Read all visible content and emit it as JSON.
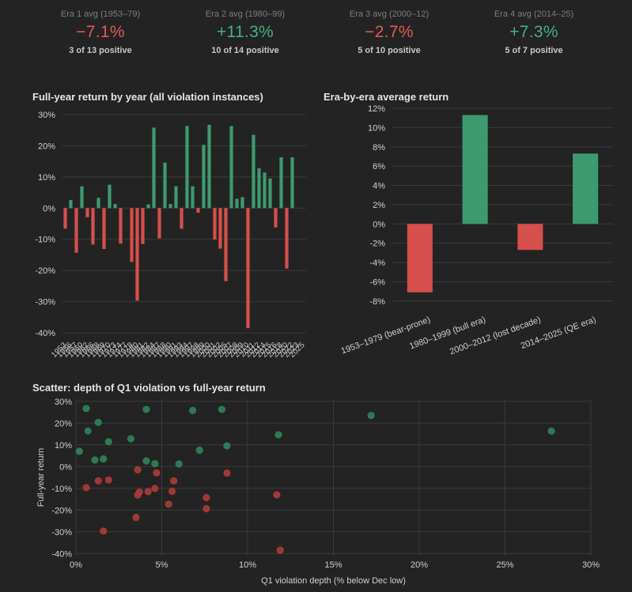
{
  "colors": {
    "positive": "#3d9a6f",
    "negative": "#d64f4b",
    "pos_text": "#45b07f",
    "neg_text": "#e05a55",
    "grid": "#3a3a3a",
    "axis_text": "#d0d0d0"
  },
  "stats": [
    {
      "label": "Era 1 avg (1953–79)",
      "value": "−7.1%",
      "sub": "3 of 13 positive",
      "sign": "neg"
    },
    {
      "label": "Era 2 avg (1980–99)",
      "value": "+11.3%",
      "sub": "10 of 14 positive",
      "sign": "pos"
    },
    {
      "label": "Era 3 avg (2000–12)",
      "value": "−2.7%",
      "sub": "5 of 10 positive",
      "sign": "neg"
    },
    {
      "label": "Era 4 avg (2014–25)",
      "value": "+7.3%",
      "sub": "5 of 7 positive",
      "sign": "pos"
    }
  ],
  "chart_data": [
    {
      "type": "bar",
      "title": "Full-year return by year (all violation instances)",
      "ylim": [
        -42,
        32
      ],
      "yticks": [
        30,
        20,
        10,
        0,
        -10,
        -20,
        -30,
        -40
      ],
      "ytick_labels": [
        "30%",
        "20%",
        "10%",
        "0%",
        "-10%",
        "-20%",
        "-30%",
        "-40%"
      ],
      "categories": [
        "1953",
        "1956",
        "1957",
        "1960",
        "1962",
        "1966",
        "1968",
        "1969",
        "1970",
        "1973",
        "1974",
        "1977",
        "1978",
        "1980",
        "1981",
        "1982",
        "1984",
        "1987",
        "1988",
        "1990",
        "1991",
        "1993",
        "1994",
        "1997",
        "1998",
        "1999",
        "2000",
        "2001",
        "2002",
        "2005",
        "2007",
        "2008",
        "2009",
        "2010",
        "2011",
        "2012",
        "2014",
        "2015",
        "2016",
        "2018",
        "2020",
        "2022",
        "2023",
        "2025"
      ],
      "values": [
        -6.6,
        2.6,
        -14.3,
        7.0,
        -2.9,
        -11.7,
        3.3,
        -13.1,
        7.5,
        1.3,
        -11.4,
        0,
        -17.3,
        -29.7,
        -11.5,
        1.2,
        25.8,
        -9.7,
        14.6,
        1.3,
        7.0,
        -6.6,
        26.3,
        7.0,
        -1.5,
        20.3,
        26.7,
        -10.1,
        -13.0,
        -23.4,
        26.3,
        3.0,
        3.5,
        -38.5,
        23.5,
        12.8,
        11.4,
        9.5,
        -6.2,
        16.3,
        -19.4,
        16.3,
        0,
        0
      ]
    },
    {
      "type": "bar",
      "title": "Era-by-era average return",
      "ylim": [
        -9,
        12
      ],
      "yticks": [
        12,
        10,
        8,
        6,
        4,
        2,
        0,
        -2,
        -4,
        -6,
        -8
      ],
      "ytick_labels": [
        "12%",
        "10%",
        "8%",
        "6%",
        "4%",
        "2%",
        "0%",
        "-2%",
        "-4%",
        "-6%",
        "-8%"
      ],
      "categories": [
        "1953–1979 (bear-prone)",
        "1980–1999 (bull era)",
        "2000–2012 (lost decade)",
        "2014–2025 (QE era)"
      ],
      "values": [
        -7.1,
        11.3,
        -2.7,
        7.3
      ]
    },
    {
      "type": "scatter",
      "title": "Scatter: depth of Q1 violation vs full-year return",
      "xlabel": "Q1 violation depth (% below Dec low)",
      "ylabel": "Full-year return",
      "xlim": [
        0,
        30
      ],
      "ylim": [
        -41,
        31
      ],
      "xticks": [
        0,
        5,
        10,
        15,
        20,
        25,
        30
      ],
      "xtick_labels": [
        "0%",
        "5%",
        "10%",
        "15%",
        "20%",
        "25%",
        "30%"
      ],
      "yticks": [
        30,
        20,
        10,
        0,
        -10,
        -20,
        -30,
        -40
      ],
      "ytick_labels": [
        "30%",
        "20%",
        "10%",
        "0%",
        "-10%",
        "-20%",
        "-30%",
        "-40%"
      ],
      "points": [
        {
          "x": 0.6,
          "y": 26.7
        },
        {
          "x": 1.3,
          "y": 20.3
        },
        {
          "x": 0.7,
          "y": 16.3
        },
        {
          "x": 1.9,
          "y": 11.4
        },
        {
          "x": 0.2,
          "y": 7.0
        },
        {
          "x": 1.1,
          "y": 3.0
        },
        {
          "x": 1.6,
          "y": 3.5
        },
        {
          "x": 3.2,
          "y": 12.8
        },
        {
          "x": 4.1,
          "y": 26.3
        },
        {
          "x": 4.1,
          "y": 2.6
        },
        {
          "x": 4.6,
          "y": 1.3
        },
        {
          "x": 6.0,
          "y": 1.2
        },
        {
          "x": 6.8,
          "y": 25.8
        },
        {
          "x": 7.2,
          "y": 7.5
        },
        {
          "x": 8.5,
          "y": 26.3
        },
        {
          "x": 8.8,
          "y": 9.5
        },
        {
          "x": 11.8,
          "y": 14.6
        },
        {
          "x": 17.2,
          "y": 23.5
        },
        {
          "x": 27.7,
          "y": 16.3
        },
        {
          "x": 0.6,
          "y": -9.7
        },
        {
          "x": 1.3,
          "y": -6.6
        },
        {
          "x": 1.9,
          "y": -6.2
        },
        {
          "x": 1.6,
          "y": -29.7
        },
        {
          "x": 3.6,
          "y": -1.5
        },
        {
          "x": 3.6,
          "y": -13.1
        },
        {
          "x": 3.7,
          "y": -11.7
        },
        {
          "x": 3.5,
          "y": -23.4
        },
        {
          "x": 4.2,
          "y": -11.5
        },
        {
          "x": 4.6,
          "y": -10.1
        },
        {
          "x": 4.7,
          "y": -2.9
        },
        {
          "x": 5.7,
          "y": -6.6
        },
        {
          "x": 5.6,
          "y": -11.4
        },
        {
          "x": 5.4,
          "y": -17.3
        },
        {
          "x": 7.6,
          "y": -14.3
        },
        {
          "x": 7.6,
          "y": -19.4
        },
        {
          "x": 8.8,
          "y": -3.0
        },
        {
          "x": 11.7,
          "y": -13.0
        },
        {
          "x": 11.9,
          "y": -38.5
        }
      ]
    }
  ]
}
